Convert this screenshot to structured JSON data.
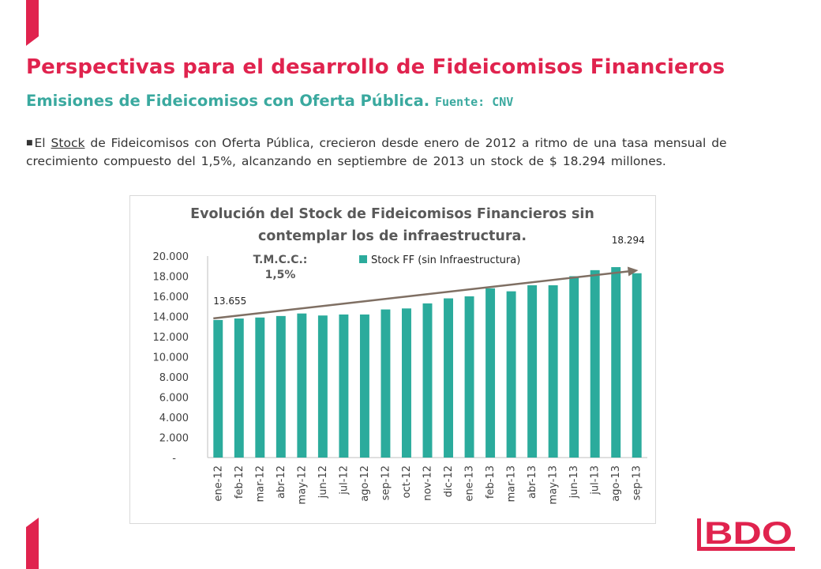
{
  "slide": {
    "title": "Perspectivas para el desarrollo de Fideicomisos Financieros",
    "subtitle_main": "Emisiones de Fideicomisos con Oferta Pública.",
    "subtitle_source": "Fuente: CNV",
    "bullet_pre": "El ",
    "bullet_link": "Stock",
    "bullet_post": " de Fideicomisos con Oferta Pública, crecieron desde enero de 2012 a ritmo de una tasa mensual de crecimiento compuesto del 1,5%, alcanzando en septiembre de 2013 un stock de $ 18.294 millones.",
    "accent_color": "#e0234e",
    "secondary_color": "#3aa99f",
    "logo": {
      "text": "BDO",
      "color": "#e0234e"
    }
  },
  "chart_data": {
    "type": "bar",
    "title_lines": [
      "Evolución del Stock de Fideicomisos Financieros sin",
      "contemplar los de infraestructura."
    ],
    "categories": [
      "ene-12",
      "feb-12",
      "mar-12",
      "abr-12",
      "may-12",
      "jun-12",
      "jul-12",
      "ago-12",
      "sep-12",
      "oct-12",
      "nov-12",
      "dic-12",
      "ene-13",
      "feb-13",
      "mar-13",
      "abr-13",
      "may-13",
      "jun-13",
      "jul-13",
      "ago-13",
      "sep-13"
    ],
    "series": [
      {
        "name": "Stock FF (sin Infraestructura)",
        "color": "#2bab9c",
        "values": [
          13655,
          13800,
          13900,
          14050,
          14300,
          14100,
          14200,
          14200,
          14700,
          14800,
          15300,
          15800,
          16000,
          16800,
          16500,
          17100,
          17100,
          18000,
          18600,
          18900,
          18294
        ]
      }
    ],
    "ylim": [
      0,
      20000
    ],
    "yticks": [
      0,
      2000,
      4000,
      6000,
      8000,
      10000,
      12000,
      14000,
      16000,
      18000,
      20000
    ],
    "ytick_labels": [
      "-",
      "2.000",
      "4.000",
      "6.000",
      "8.000",
      "10.000",
      "12.000",
      "14.000",
      "16.000",
      "18.000",
      "20.000"
    ],
    "data_labels": [
      {
        "index": 0,
        "text": "13.655"
      },
      {
        "index": 20,
        "text": "18.294"
      }
    ],
    "annotation_lines": [
      "T.M.C.C.:",
      "1,5%"
    ],
    "trend_color": "#7f6f63",
    "legend_position": "top-center",
    "grid": false
  }
}
